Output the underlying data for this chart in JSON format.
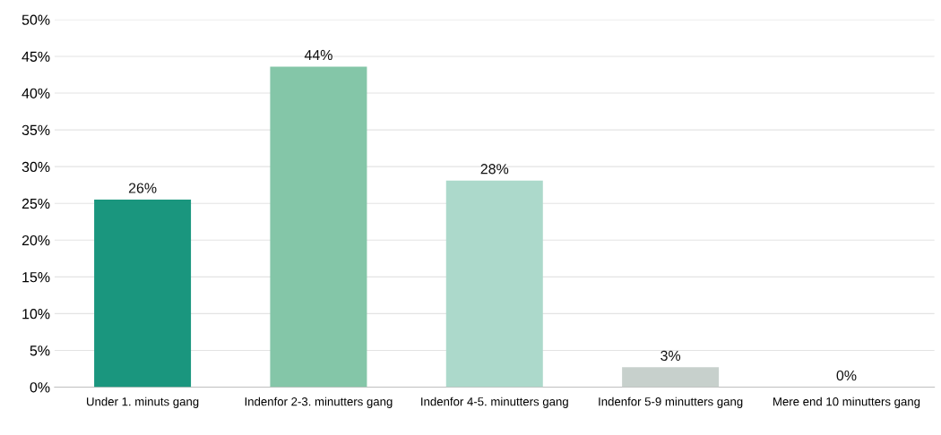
{
  "chart_data": {
    "type": "bar",
    "categories": [
      "Under 1. minuts gang",
      "Indenfor 2-3. minutters gang",
      "Indenfor 4-5. minutters gang",
      "Indenfor 5-9 minutters gang",
      "Mere end 10 minutters gang"
    ],
    "values": [
      25.5,
      43.6,
      28.1,
      2.7,
      0
    ],
    "colors": [
      "#1a967e",
      "#84c6a8",
      "#acd9cb",
      "#c7d0cc",
      "#c7d0cc"
    ],
    "value_labels": [
      "26%",
      "44%",
      "28%",
      "3%",
      "0%"
    ],
    "ylim": [
      0,
      50
    ],
    "yticks": [
      {
        "value": 0,
        "label": "0%"
      },
      {
        "value": 5,
        "label": "5%"
      },
      {
        "value": 10,
        "label": "10%"
      },
      {
        "value": 15,
        "label": "15%"
      },
      {
        "value": 20,
        "label": "20%"
      },
      {
        "value": 25,
        "label": "25%"
      },
      {
        "value": 30,
        "label": "30%"
      },
      {
        "value": 35,
        "label": "35%"
      },
      {
        "value": 40,
        "label": "40%"
      },
      {
        "value": 45,
        "label": "45%"
      },
      {
        "value": 50,
        "label": "50%"
      }
    ],
    "grid": "y",
    "legend": false
  }
}
